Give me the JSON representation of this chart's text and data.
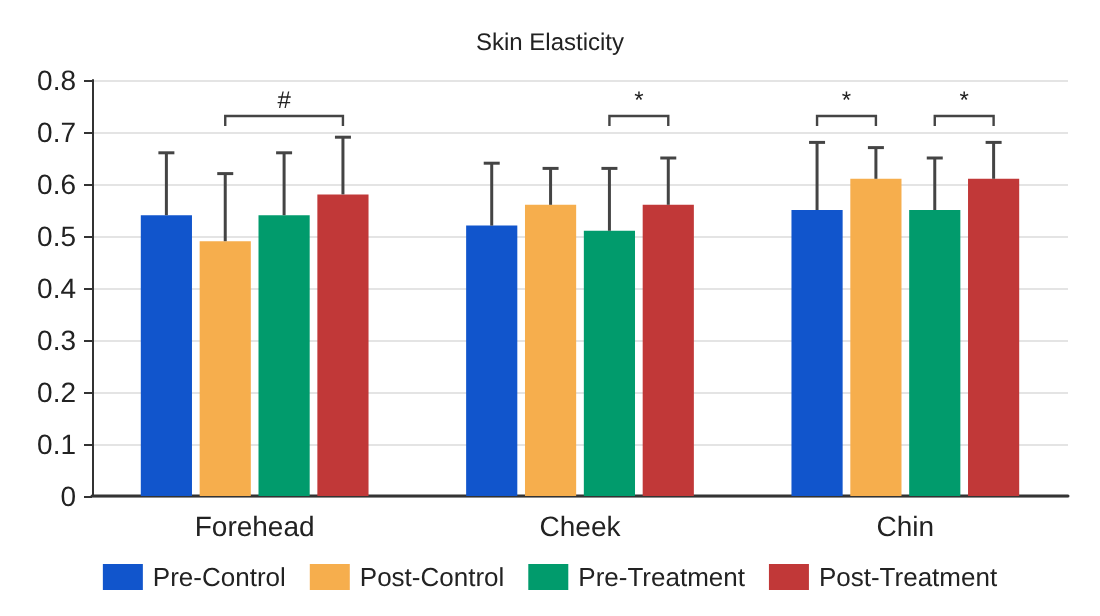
{
  "chart_data": {
    "type": "bar",
    "title": "Skin Elasticity",
    "categories": [
      "Forehead",
      "Cheek",
      "Chin"
    ],
    "series": [
      {
        "name": "Pre-Control",
        "color": "#1155cc",
        "values": [
          0.54,
          0.52,
          0.55
        ],
        "errors": [
          [
            0.54,
            0.66
          ],
          [
            0.52,
            0.64
          ],
          [
            0.55,
            0.68
          ]
        ]
      },
      {
        "name": "Post-Control",
        "color": "#f6ae4d",
        "values": [
          0.49,
          0.56,
          0.61
        ],
        "errors": [
          [
            0.49,
            0.62
          ],
          [
            0.56,
            0.63
          ],
          [
            0.61,
            0.67
          ]
        ]
      },
      {
        "name": "Pre-Treatment",
        "color": "#019b6c",
        "values": [
          0.54,
          0.51,
          0.55
        ],
        "errors": [
          [
            0.54,
            0.66
          ],
          [
            0.51,
            0.63
          ],
          [
            0.55,
            0.65
          ]
        ]
      },
      {
        "name": "Post-Treatment",
        "color": "#c13838",
        "values": [
          0.58,
          0.56,
          0.61
        ],
        "errors": [
          [
            0.58,
            0.69
          ],
          [
            0.56,
            0.65
          ],
          [
            0.61,
            0.68
          ]
        ]
      }
    ],
    "annotations": [
      "#",
      "*",
      "*",
      "*"
    ],
    "ylim": [
      0,
      0.8
    ],
    "yticks": [
      0,
      0.1,
      0.2,
      0.3,
      0.4,
      0.5,
      0.6,
      0.7,
      0.8
    ],
    "grid": "y",
    "legend": "bottom"
  }
}
